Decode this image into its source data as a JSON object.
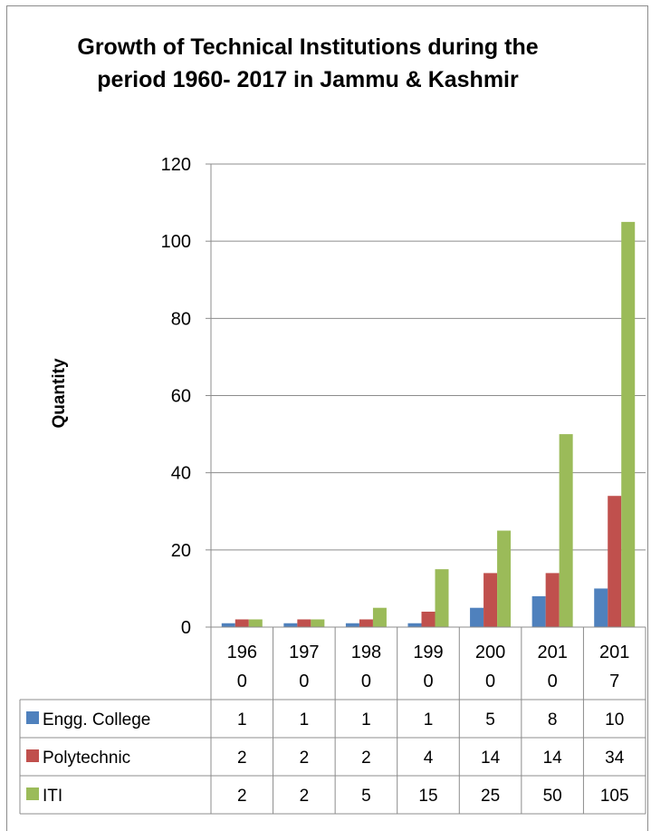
{
  "chart_data": {
    "type": "bar",
    "title": "Growth of Technical Institutions during the period 1960- 2017 in Jammu & Kashmir",
    "xlabel": "",
    "ylabel": "Quantity",
    "ylim": [
      0,
      120
    ],
    "yticks": [
      0,
      20,
      40,
      60,
      80,
      100,
      120
    ],
    "grid": true,
    "legend": "data-table",
    "categories": [
      [
        "196",
        "0"
      ],
      [
        "197",
        "0"
      ],
      [
        "198",
        "0"
      ],
      [
        "199",
        "0"
      ],
      [
        "200",
        "0"
      ],
      [
        "201",
        "0"
      ],
      [
        "201",
        "7"
      ]
    ],
    "series": [
      {
        "name": "Engg. College",
        "color": "#4f81bd",
        "values": [
          1,
          1,
          1,
          1,
          5,
          8,
          10
        ]
      },
      {
        "name": "Polytechnic",
        "color": "#c0504d",
        "values": [
          2,
          2,
          2,
          4,
          14,
          14,
          34
        ]
      },
      {
        "name": "ITI",
        "color": "#9bbb59",
        "values": [
          2,
          2,
          5,
          15,
          25,
          50,
          105
        ]
      }
    ]
  }
}
